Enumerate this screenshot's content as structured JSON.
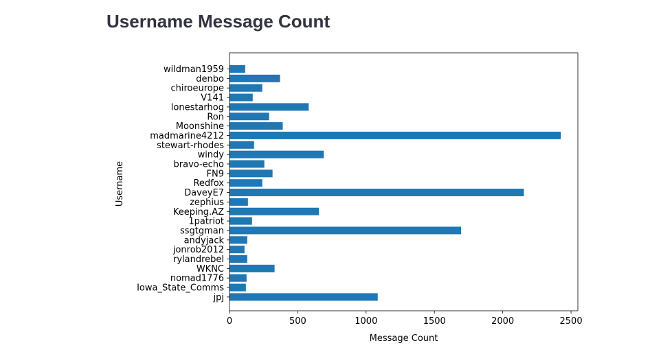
{
  "page": {
    "title": "Username Message Count"
  },
  "chart_data": {
    "type": "bar",
    "orientation": "horizontal",
    "title": "",
    "xlabel": "Message Count",
    "ylabel": "Username",
    "xlim": [
      0,
      2550
    ],
    "xticks": [
      0,
      500,
      1000,
      1500,
      2000,
      2500
    ],
    "grid": false,
    "bar_color": "#1f77b4",
    "categories": [
      "wildman1959",
      "denbo",
      "chiroeurope",
      "V141",
      "lonestarhog",
      "Ron",
      "Moonshine",
      "madmarine4212",
      "stewart-rhodes",
      "windy",
      "bravo-echo",
      "FN9",
      "Redfox",
      "DaveyE7",
      "zephius",
      "Keeping.AZ",
      "1patriot",
      "ssgtgman",
      "andyjack",
      "jonrob2012",
      "rylandrebel",
      "WKNC",
      "nomad1776",
      "Iowa_State_Comms",
      "jpj"
    ],
    "values": [
      115,
      370,
      240,
      170,
      580,
      290,
      390,
      2425,
      180,
      690,
      255,
      315,
      240,
      2155,
      135,
      655,
      165,
      1695,
      130,
      110,
      130,
      330,
      125,
      120,
      1085
    ]
  }
}
